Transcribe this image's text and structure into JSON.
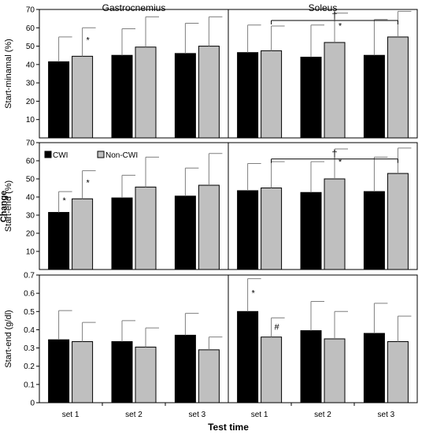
{
  "chart_data": {
    "type": "bar",
    "xlabel": "Test time",
    "row_group_label": "Change",
    "categories": [
      "set 1",
      "set 2",
      "set 3"
    ],
    "legend": [
      {
        "name": "CWI",
        "color": "#000000"
      },
      {
        "name": "Non-CWI",
        "color": "#bfbfbf"
      }
    ],
    "legend_placement": "top-left of middle-left panel",
    "grid": false,
    "columns": [
      "Gastrocnemius",
      "Soleus"
    ],
    "rows": [
      {
        "ylabel": "Start-minamal (%)",
        "ylim": [
          0,
          70
        ],
        "yticks": [
          "10",
          "20",
          "30",
          "40",
          "50",
          "60",
          "70"
        ],
        "panels": [
          {
            "column": "Gastrocnemius",
            "series": [
              {
                "name": "CWI",
                "values": [
                  41.5,
                  45.0,
                  46.0
                ],
                "errors": [
                  13.5,
                  14.5,
                  16.5
                ]
              },
              {
                "name": "Non-CWI",
                "values": [
                  44.5,
                  49.5,
                  50.0
                ],
                "errors": [
                  15.5,
                  16.5,
                  16.0
                ]
              }
            ],
            "annotations": [
              {
                "text": "*",
                "series": "Non-CWI",
                "category": "set 1"
              }
            ],
            "brackets": []
          },
          {
            "column": "Soleus",
            "series": [
              {
                "name": "CWI",
                "values": [
                  46.5,
                  44.0,
                  45.0
                ],
                "errors": [
                  15.0,
                  17.5,
                  19.5
                ]
              },
              {
                "name": "Non-CWI",
                "values": [
                  47.5,
                  52.0,
                  55.0
                ],
                "errors": [
                  13.5,
                  16.0,
                  14.0
                ]
              }
            ],
            "annotations": [
              {
                "text": "*",
                "series": "Non-CWI",
                "category": "set 2"
              }
            ],
            "brackets": [
              {
                "from": "set 1",
                "to": "set 3",
                "symbol": "†",
                "level": 64
              }
            ]
          }
        ]
      },
      {
        "ylabel": "Start-end (%)",
        "ylim": [
          0,
          70
        ],
        "yticks": [
          "10",
          "20",
          "30",
          "40",
          "50",
          "60",
          "70"
        ],
        "panels": [
          {
            "column": "Gastrocnemius",
            "series": [
              {
                "name": "CWI",
                "values": [
                  31.5,
                  39.5,
                  40.5
                ],
                "errors": [
                  11.5,
                  12.5,
                  15.5
                ]
              },
              {
                "name": "Non-CWI",
                "values": [
                  39.0,
                  45.5,
                  46.5
                ],
                "errors": [
                  15.5,
                  16.5,
                  17.5
                ]
              }
            ],
            "annotations": [
              {
                "text": "*",
                "series": "CWI",
                "category": "set 1"
              },
              {
                "text": "*",
                "series": "Non-CWI",
                "category": "set 1"
              }
            ],
            "brackets": []
          },
          {
            "column": "Soleus",
            "series": [
              {
                "name": "CWI",
                "values": [
                  43.5,
                  42.5,
                  43.0
                ],
                "errors": [
                  15.0,
                  17.0,
                  19.0
                ]
              },
              {
                "name": "Non-CWI",
                "values": [
                  45.0,
                  50.0,
                  53.0
                ],
                "errors": [
                  14.5,
                  16.5,
                  14.0
                ]
              }
            ],
            "annotations": [
              {
                "text": "*",
                "series": "Non-CWI",
                "category": "set 2"
              }
            ],
            "brackets": [
              {
                "from": "set 1",
                "to": "set 3",
                "symbol": "†",
                "level": 61
              }
            ]
          }
        ]
      },
      {
        "ylabel": "Start-end (g/dl)",
        "ylim": [
          0,
          0.7
        ],
        "yticks": [
          "0",
          "0.1",
          "0.2",
          "0.3",
          "0.4",
          "0.5",
          "0.6",
          "0.7"
        ],
        "panels": [
          {
            "column": "Gastrocnemius",
            "series": [
              {
                "name": "CWI",
                "values": [
                  0.345,
                  0.335,
                  0.37
                ],
                "errors": [
                  0.16,
                  0.115,
                  0.12
                ]
              },
              {
                "name": "Non-CWI",
                "values": [
                  0.335,
                  0.305,
                  0.29
                ],
                "errors": [
                  0.105,
                  0.105,
                  0.07
                ]
              }
            ],
            "annotations": [],
            "brackets": []
          },
          {
            "column": "Soleus",
            "series": [
              {
                "name": "CWI",
                "values": [
                  0.5,
                  0.395,
                  0.38
                ],
                "errors": [
                  0.18,
                  0.16,
                  0.165
                ]
              },
              {
                "name": "Non-CWI",
                "values": [
                  0.36,
                  0.35,
                  0.335
                ],
                "errors": [
                  0.105,
                  0.15,
                  0.14
                ]
              }
            ],
            "annotations": [
              {
                "text": "*",
                "series": "CWI",
                "category": "set 1"
              },
              {
                "text": "#",
                "series": "Non-CWI",
                "category": "set 1"
              }
            ],
            "brackets": []
          }
        ]
      }
    ]
  }
}
